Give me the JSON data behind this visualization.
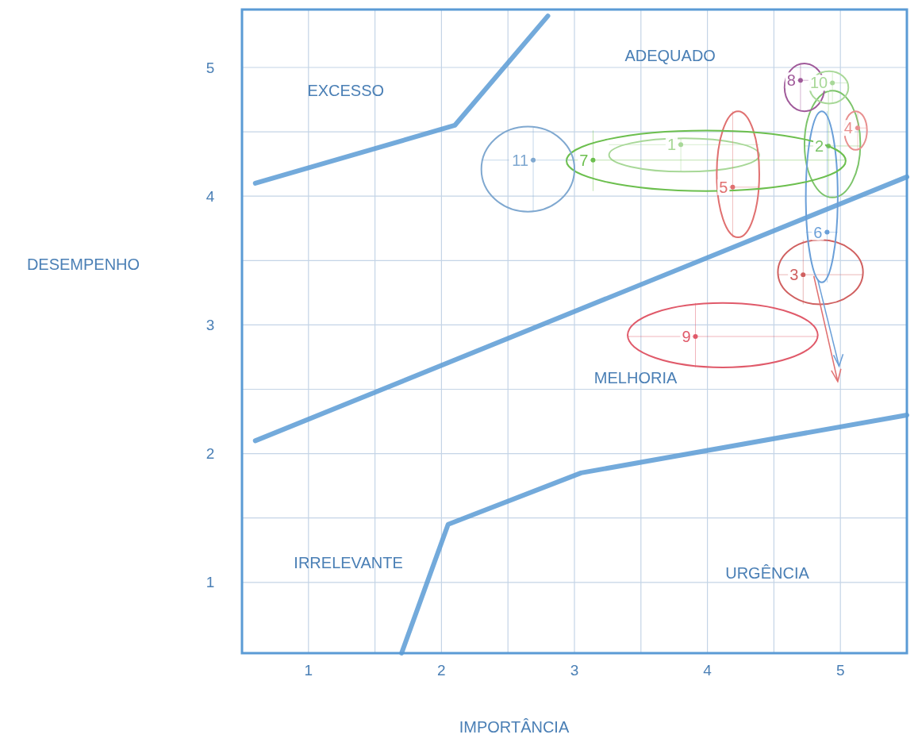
{
  "chart_data": {
    "type": "scatter",
    "xlabel": "IMPORTÂNCIA",
    "ylabel": "DESEMPENHO",
    "xlim": [
      0.5,
      5.5
    ],
    "ylim": [
      0.45,
      5.45
    ],
    "xticks": [
      1,
      {
        "value": 1.5,
        "label": null
      },
      2,
      {
        "value": 2.5,
        "label": null
      },
      3,
      {
        "value": 3.5,
        "label": null
      },
      4,
      {
        "value": 4.5,
        "label": null
      },
      5
    ],
    "yticks": [
      1,
      {
        "value": 1.5,
        "label": null
      },
      2,
      {
        "value": 2.5,
        "label": null
      },
      3,
      {
        "value": 3.5,
        "label": null
      },
      4,
      {
        "value": 4.5,
        "label": null
      },
      5
    ],
    "grid": true,
    "marker": "circle",
    "series": [
      {
        "type": "line",
        "marker": "none",
        "color": "#5b9bd5",
        "x": [
          0.6,
          2.1,
          2.8
        ],
        "values": [
          4.1,
          4.55,
          5.4
        ]
      },
      {
        "type": "line",
        "marker": "none",
        "color": "#5b9bd5",
        "x": [
          0.6,
          5.5
        ],
        "values": [
          2.1,
          4.15
        ]
      },
      {
        "type": "line",
        "marker": "none",
        "color": "#5b9bd5",
        "x": [
          1.7,
          2.05,
          3.05,
          5.5
        ],
        "values": [
          0.45,
          1.45,
          1.85,
          2.3
        ]
      },
      {
        "name": "1",
        "color": "#a8d898",
        "x": [
          3.8
        ],
        "values": [
          4.4
        ],
        "xerrors": [
          [
            3.26,
            4.39
          ]
        ],
        "errors": [
          [
            4.19,
            4.45
          ]
        ]
      },
      {
        "name": "2",
        "color": "#7cc46a",
        "x": [
          4.91
        ],
        "values": [
          4.39
        ],
        "xerrors": [
          [
            4.73,
            5.15
          ]
        ],
        "errors": [
          [
            3.99,
            4.82
          ]
        ]
      },
      {
        "name": "3",
        "color": "#d06060",
        "x": [
          4.72
        ],
        "values": [
          3.39
        ],
        "xerrors": [
          [
            4.53,
            5.17
          ]
        ],
        "errors": [
          [
            3.16,
            3.66
          ]
        ]
      },
      {
        "name": "4",
        "color": "#e89090",
        "x": [
          5.13
        ],
        "values": [
          4.53
        ],
        "xerrors": [
          [
            5.03,
            5.2
          ]
        ],
        "errors": [
          [
            4.36,
            4.66
          ]
        ]
      },
      {
        "name": "5",
        "color": "#e07070",
        "x": [
          4.19
        ],
        "values": [
          4.07
        ],
        "xerrors": [
          [
            4.07,
            4.39
          ]
        ],
        "errors": [
          [
            3.68,
            4.66
          ]
        ]
      },
      {
        "name": "6",
        "color": "#6a9fd8",
        "x": [
          4.9
        ],
        "values": [
          3.72
        ],
        "xerrors": [
          [
            4.74,
            4.98
          ]
        ],
        "errors": [
          [
            3.33,
            4.66
          ]
        ]
      },
      {
        "name": "7",
        "color": "#6cbf4e",
        "x": [
          3.14
        ],
        "values": [
          4.28
        ],
        "xerrors": [
          [
            2.94,
            5.04
          ]
        ],
        "errors": [
          [
            4.04,
            4.51
          ]
        ]
      },
      {
        "name": "8",
        "color": "#a05a9a",
        "x": [
          4.7
        ],
        "values": [
          4.9
        ],
        "xerrors": [
          [
            4.58,
            4.88
          ]
        ],
        "errors": [
          [
            4.66,
            5.03
          ]
        ]
      },
      {
        "name": "9",
        "color": "#e05a6a",
        "x": [
          3.91
        ],
        "values": [
          2.91
        ],
        "xerrors": [
          [
            3.4,
            4.83
          ]
        ],
        "errors": [
          [
            2.67,
            3.17
          ]
        ]
      },
      {
        "name": "10",
        "color": "#a8d898",
        "x": [
          4.94
        ],
        "values": [
          4.88
        ],
        "xerrors": [
          [
            4.77,
            5.06
          ]
        ],
        "errors": [
          [
            4.72,
            4.97
          ]
        ]
      },
      {
        "name": "11",
        "color": "#7fa8d0",
        "x": [
          2.69
        ],
        "values": [
          4.28
        ],
        "xerrors": [
          [
            2.3,
            3.0
          ]
        ],
        "errors": [
          [
            3.88,
            4.54
          ]
        ]
      }
    ],
    "annotations": [
      "EXCESSO",
      "ADEQUADO",
      "MELHORIA",
      "IRRELEVANTE",
      "URGÊNCIA"
    ]
  }
}
